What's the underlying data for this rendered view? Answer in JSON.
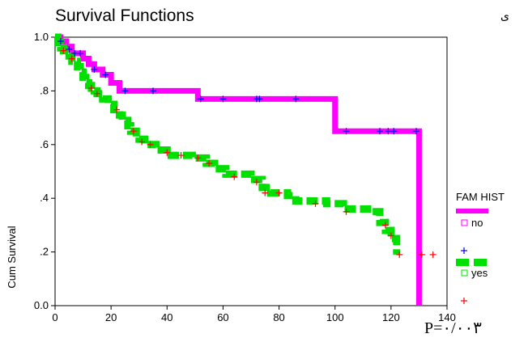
{
  "chart_data": {
    "type": "line",
    "title": "Survival Functions",
    "xlabel": "",
    "ylabel": "Cum Survival",
    "xlim": [
      0,
      140
    ],
    "ylim": [
      0,
      1
    ],
    "x_ticks": [
      0,
      20,
      40,
      60,
      80,
      100,
      120,
      140
    ],
    "x_tick_labels": [
      "0",
      "20",
      "40",
      "60",
      "80",
      "100",
      "120",
      "140"
    ],
    "y_ticks": [
      0,
      0.2,
      0.4,
      0.6,
      0.8,
      1.0
    ],
    "y_tick_labels": [
      "0.0",
      ".2",
      ".4",
      ".6",
      ".8",
      "1.0"
    ],
    "grid": false,
    "legend_title": "FAM HIST",
    "legend_position": "right",
    "annotation": "P=۰/۰۰۳",
    "corner_mark": "ی",
    "series": [
      {
        "name": "no",
        "color": "#ff00ff",
        "censor_color": "#0000ff",
        "steps": [
          [
            0,
            1.0
          ],
          [
            2,
            0.985
          ],
          [
            4,
            0.965
          ],
          [
            6,
            0.94
          ],
          [
            10,
            0.92
          ],
          [
            12,
            0.9
          ],
          [
            14,
            0.88
          ],
          [
            17,
            0.86
          ],
          [
            20,
            0.83
          ],
          [
            23,
            0.8
          ],
          [
            51,
            0.77
          ],
          [
            100,
            0.65
          ],
          [
            130,
            0.0
          ]
        ],
        "censored": [
          [
            2,
            0.985
          ],
          [
            5,
            0.955
          ],
          [
            7,
            0.94
          ],
          [
            9,
            0.94
          ],
          [
            14,
            0.88
          ],
          [
            18,
            0.86
          ],
          [
            25,
            0.8
          ],
          [
            35,
            0.8
          ],
          [
            52,
            0.77
          ],
          [
            60,
            0.77
          ],
          [
            72,
            0.77
          ],
          [
            73,
            0.77
          ],
          [
            86,
            0.77
          ],
          [
            104,
            0.65
          ],
          [
            116,
            0.65
          ],
          [
            119,
            0.65
          ],
          [
            121,
            0.65
          ],
          [
            129,
            0.65
          ]
        ]
      },
      {
        "name": "yes",
        "color": "#00e000",
        "censor_color": "#ff0000",
        "steps": [
          [
            0,
            1.0
          ],
          [
            1,
            0.98
          ],
          [
            2,
            0.96
          ],
          [
            3,
            0.95
          ],
          [
            5,
            0.93
          ],
          [
            6,
            0.91
          ],
          [
            8,
            0.89
          ],
          [
            9,
            0.87
          ],
          [
            10,
            0.85
          ],
          [
            11,
            0.83
          ],
          [
            12,
            0.82
          ],
          [
            13,
            0.81
          ],
          [
            14,
            0.8
          ],
          [
            15,
            0.79
          ],
          [
            17,
            0.77
          ],
          [
            19,
            0.75
          ],
          [
            21,
            0.73
          ],
          [
            23,
            0.71
          ],
          [
            24,
            0.69
          ],
          [
            26,
            0.67
          ],
          [
            27,
            0.65
          ],
          [
            29,
            0.63
          ],
          [
            30,
            0.62
          ],
          [
            32,
            0.6
          ],
          [
            36,
            0.58
          ],
          [
            40,
            0.56
          ],
          [
            49,
            0.55
          ],
          [
            54,
            0.53
          ],
          [
            57,
            0.51
          ],
          [
            61,
            0.49
          ],
          [
            70,
            0.47
          ],
          [
            74,
            0.44
          ],
          [
            77,
            0.42
          ],
          [
            83,
            0.41
          ],
          [
            86,
            0.39
          ],
          [
            97,
            0.38
          ],
          [
            103,
            0.36
          ],
          [
            113,
            0.35
          ],
          [
            116,
            0.31
          ],
          [
            118,
            0.28
          ],
          [
            120,
            0.25
          ],
          [
            122,
            0.19
          ]
        ],
        "censored": [
          [
            3,
            0.95
          ],
          [
            6,
            0.92
          ],
          [
            13,
            0.81
          ],
          [
            15,
            0.79
          ],
          [
            22,
            0.73
          ],
          [
            28,
            0.65
          ],
          [
            31,
            0.61
          ],
          [
            34,
            0.6
          ],
          [
            40,
            0.57
          ],
          [
            45,
            0.56
          ],
          [
            51,
            0.55
          ],
          [
            55,
            0.53
          ],
          [
            64,
            0.48
          ],
          [
            72,
            0.46
          ],
          [
            75,
            0.42
          ],
          [
            80,
            0.42
          ],
          [
            93,
            0.38
          ],
          [
            104,
            0.35
          ],
          [
            118,
            0.3
          ],
          [
            120,
            0.26
          ],
          [
            123,
            0.19
          ],
          [
            131,
            0.19
          ],
          [
            135,
            0.19
          ]
        ]
      }
    ]
  }
}
